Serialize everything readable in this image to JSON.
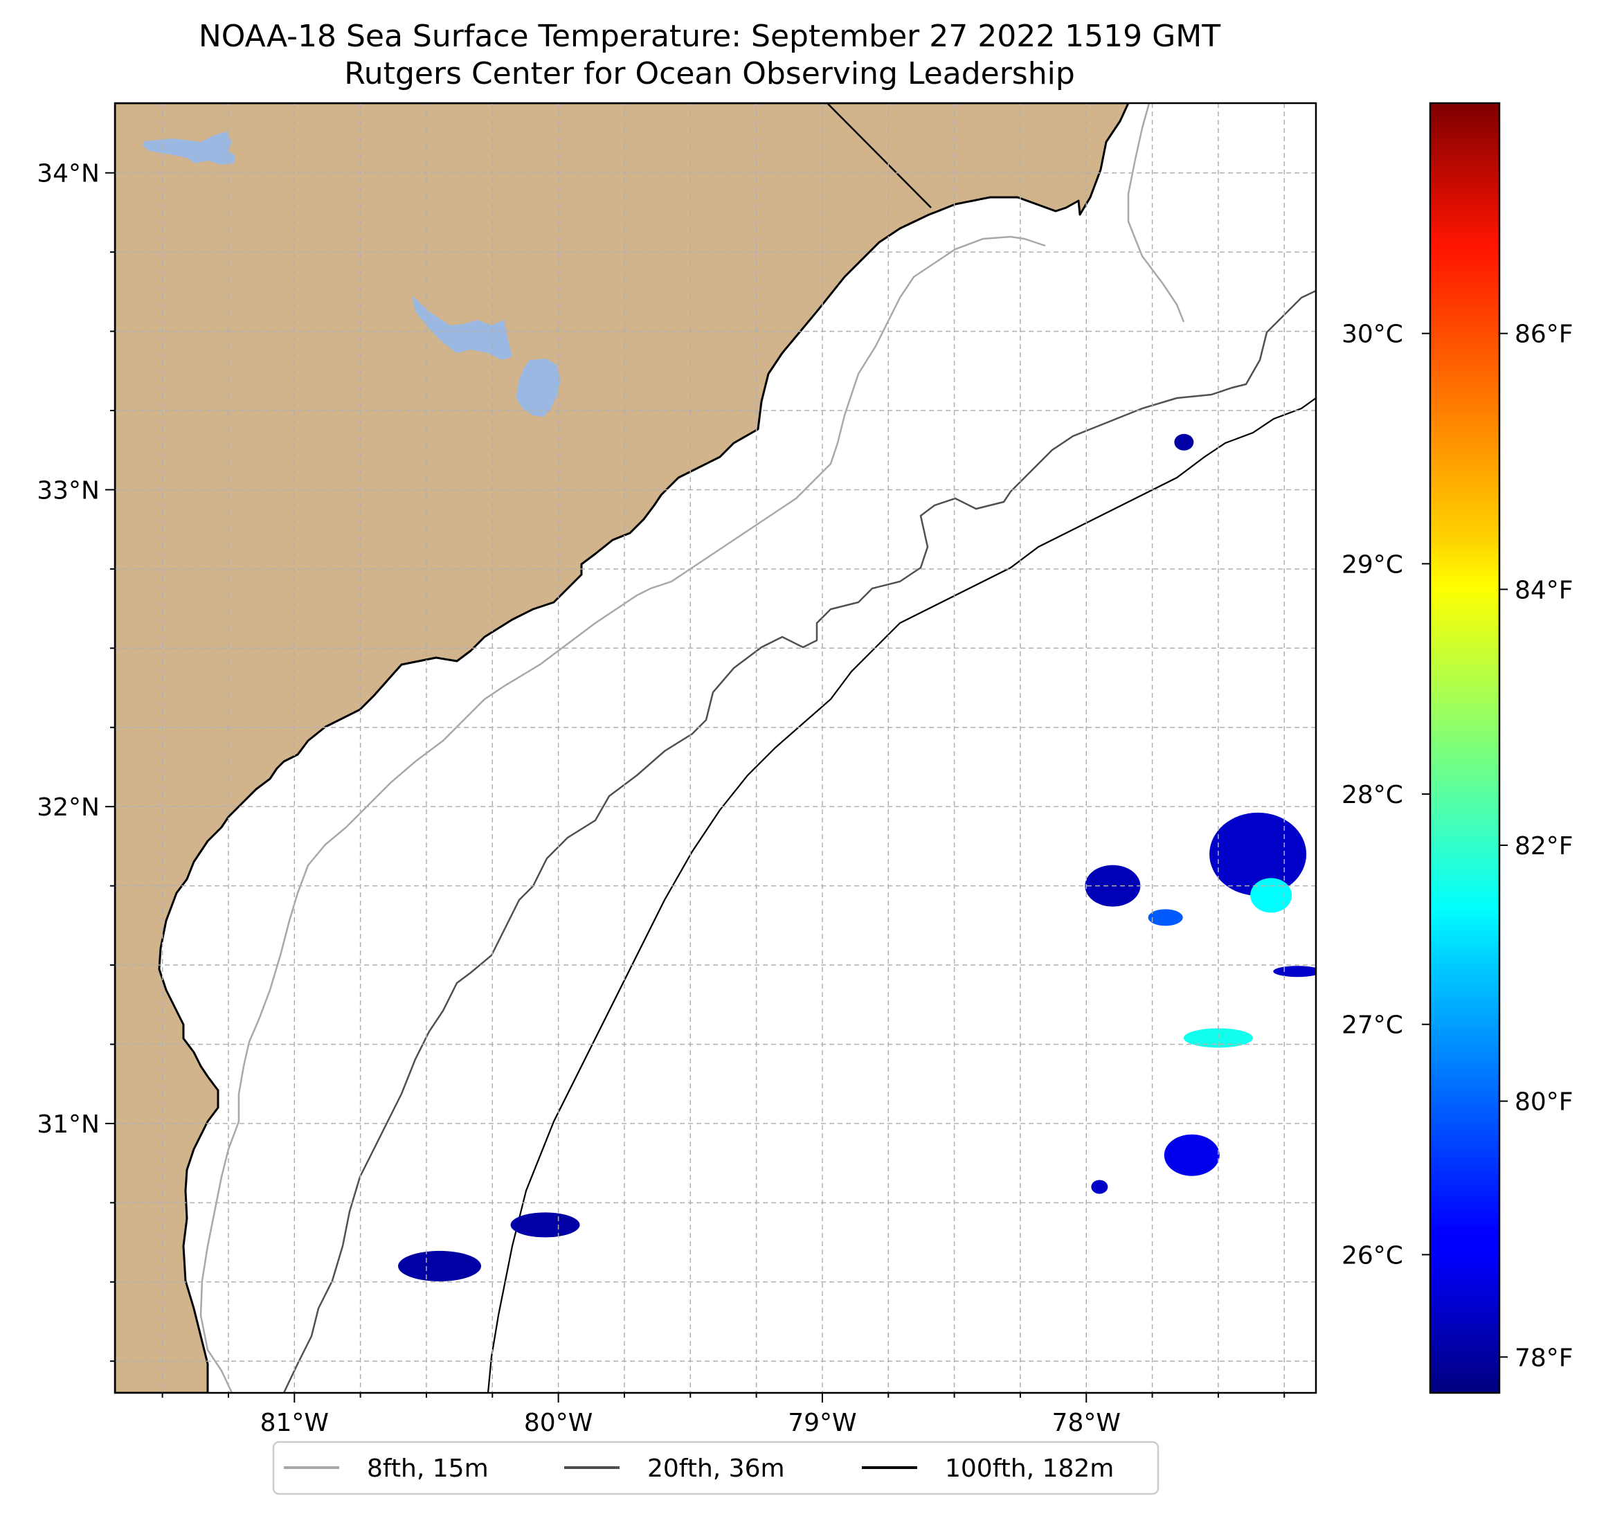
{
  "title": {
    "line1": "NOAA-18 Sea Surface Temperature: September 27 2022 1519 GMT",
    "line2": "Rutgers Center for Ocean Observing Leadership"
  },
  "map": {
    "lon_range": [
      -81.68,
      -77.13
    ],
    "lat_range": [
      30.15,
      34.22
    ],
    "lon_ticks": [
      {
        "value": -81,
        "label": "81°W"
      },
      {
        "value": -80,
        "label": "80°W"
      },
      {
        "value": -79,
        "label": "79°W"
      },
      {
        "value": -78,
        "label": "78°W"
      }
    ],
    "lat_ticks": [
      {
        "value": 34,
        "label": "34°N"
      },
      {
        "value": 33,
        "label": "33°N"
      },
      {
        "value": 32,
        "label": "32°N"
      },
      {
        "value": 31,
        "label": "31°N"
      }
    ],
    "land_color": "#d2b48c",
    "lake_color": "#9bb8e3",
    "grid": true
  },
  "legend": {
    "placement": "bottom-center",
    "items": [
      {
        "label": "8fth, 15m",
        "color": "#a8a8a8"
      },
      {
        "label": "20fth, 36m",
        "color": "#505050"
      },
      {
        "label": "100fth, 182m",
        "color": "#000000"
      }
    ]
  },
  "colorbar": {
    "colormap": "jet",
    "range_celsius": [
      25.4,
      31.0
    ],
    "celsius_ticks": [
      {
        "value": 26,
        "label": "26°C"
      },
      {
        "value": 27,
        "label": "27°C"
      },
      {
        "value": 28,
        "label": "28°C"
      },
      {
        "value": 29,
        "label": "29°C"
      },
      {
        "value": 30,
        "label": "30°C"
      }
    ],
    "fahrenheit_ticks": [
      {
        "value": 78,
        "label": "78°F"
      },
      {
        "value": 80,
        "label": "80°F"
      },
      {
        "value": 82,
        "label": "82°F"
      },
      {
        "value": 84,
        "label": "84°F"
      },
      {
        "value": 86,
        "label": "86°F"
      }
    ]
  },
  "chart_data": {
    "type": "heatmap",
    "variable": "Sea Surface Temperature",
    "units": "°C",
    "sst_patches": [
      {
        "lon": -80.45,
        "lat": 30.55,
        "temp_c": 25.6
      },
      {
        "lon": -80.05,
        "lat": 30.68,
        "temp_c": 25.6
      },
      {
        "lon": -77.63,
        "lat": 33.15,
        "temp_c": 25.6
      },
      {
        "lon": -77.9,
        "lat": 31.75,
        "temp_c": 25.7
      },
      {
        "lon": -77.7,
        "lat": 31.65,
        "temp_c": 26.6
      },
      {
        "lon": -77.35,
        "lat": 31.85,
        "temp_c": 25.8
      },
      {
        "lon": -77.3,
        "lat": 31.72,
        "temp_c": 27.5
      },
      {
        "lon": -77.2,
        "lat": 31.48,
        "temp_c": 25.8
      },
      {
        "lon": -77.5,
        "lat": 31.27,
        "temp_c": 27.6
      },
      {
        "lon": -77.6,
        "lat": 30.9,
        "temp_c": 26.0
      },
      {
        "lon": -77.95,
        "lat": 30.8,
        "temp_c": 25.8
      }
    ]
  }
}
